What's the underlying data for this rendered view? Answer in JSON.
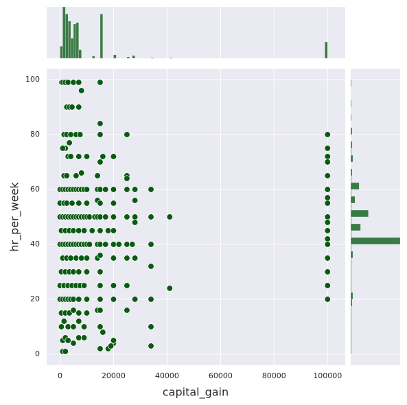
{
  "chart_data": {
    "type": "scatter",
    "xlabel": "capital_gain",
    "ylabel": "hr_per_week",
    "color": "#0b5a12",
    "grid": true,
    "xlim": [
      -5000,
      106600
    ],
    "ylim": [
      -4,
      104
    ],
    "xticks": [
      0,
      20000,
      40000,
      60000,
      80000,
      100000
    ],
    "yticks": [
      0,
      20,
      40,
      60,
      80,
      100
    ],
    "x": [
      600,
      1000,
      2000,
      3000,
      5000,
      7000,
      15000,
      2500,
      3500,
      4500,
      7000,
      8000,
      1500,
      2500,
      4000,
      6000,
      7500,
      15000,
      15000,
      25000,
      3500,
      2000,
      1000,
      3000,
      4000,
      7000,
      10000,
      15000,
      20000,
      16000,
      1500,
      2500,
      6000,
      8000,
      14000,
      25000,
      25000,
      0,
      1000,
      2000,
      3000,
      4000,
      5000,
      6000,
      7000,
      8000,
      9000,
      10000,
      14000,
      15000,
      17000,
      20000,
      25000,
      28000,
      34000,
      0,
      1500,
      2500,
      4500,
      7000,
      10000,
      14000,
      15000,
      20000,
      28000,
      0,
      1000,
      2000,
      3000,
      4000,
      5000,
      6000,
      7000,
      8000,
      9000,
      10000,
      11000,
      13000,
      14000,
      15000,
      17000,
      20000,
      25000,
      28000,
      34000,
      41000,
      500,
      2000,
      3500,
      5000,
      7000,
      9000,
      12000,
      15000,
      18000,
      20000,
      28000,
      0,
      1000,
      2000,
      3000,
      4000,
      5000,
      6000,
      7000,
      8000,
      9000,
      10000,
      11000,
      14000,
      15000,
      17000,
      20000,
      22000,
      25000,
      27000,
      34000,
      1000,
      2500,
      4000,
      6000,
      8000,
      10000,
      14000,
      15000,
      20000,
      25000,
      28000,
      500,
      2000,
      3500,
      5000,
      7000,
      10000,
      15000,
      34000,
      0,
      1500,
      3000,
      4500,
      6000,
      7500,
      9000,
      15000,
      20000,
      25000,
      0,
      1000,
      2000,
      3000,
      4000,
      5000,
      7000,
      10000,
      15000,
      20000,
      28000,
      34000,
      41000,
      500,
      2000,
      3500,
      5000,
      7000,
      10000,
      14000,
      15000,
      25000,
      500,
      1500,
      3000,
      5000,
      7000,
      9000,
      15000,
      34000,
      1000,
      2000,
      3000,
      5000,
      7000,
      9000,
      16000,
      20000,
      20000,
      1000,
      2000,
      15000,
      18000,
      19000,
      34000,
      100000,
      100000,
      100000,
      100000,
      100000,
      100000,
      100000,
      100000,
      100000,
      100000,
      100000,
      100000,
      100000,
      100000,
      100000,
      100000,
      100000
    ],
    "values": [
      99,
      99,
      99,
      99,
      99,
      99,
      99,
      90,
      90,
      90,
      90,
      96,
      80,
      80,
      80,
      80,
      80,
      84,
      80,
      80,
      77,
      75,
      75,
      72,
      72,
      72,
      72,
      70,
      72,
      72,
      65,
      65,
      65,
      66,
      65,
      65,
      64,
      60,
      60,
      60,
      60,
      60,
      60,
      60,
      60,
      60,
      60,
      60,
      60,
      60,
      60,
      60,
      60,
      60,
      60,
      55,
      55,
      55,
      55,
      55,
      55,
      56,
      55,
      55,
      56,
      50,
      50,
      50,
      50,
      50,
      50,
      50,
      50,
      50,
      50,
      50,
      50,
      50,
      50,
      50,
      50,
      50,
      50,
      50,
      50,
      50,
      45,
      45,
      45,
      45,
      45,
      45,
      45,
      45,
      45,
      45,
      48,
      40,
      40,
      40,
      40,
      40,
      40,
      40,
      40,
      40,
      40,
      40,
      40,
      40,
      40,
      40,
      40,
      40,
      40,
      40,
      40,
      35,
      35,
      35,
      35,
      35,
      35,
      35,
      36,
      35,
      35,
      35,
      30,
      30,
      30,
      30,
      30,
      30,
      30,
      32,
      25,
      25,
      25,
      25,
      25,
      25,
      25,
      25,
      25,
      25,
      20,
      20,
      20,
      20,
      20,
      20,
      20,
      20,
      20,
      20,
      20,
      20,
      24,
      15,
      15,
      15,
      16,
      15,
      15,
      16,
      16,
      16,
      10,
      12,
      10,
      10,
      12,
      10,
      10,
      10,
      5,
      6,
      5,
      4,
      6,
      6,
      8,
      4,
      5,
      1,
      1,
      2,
      2,
      3,
      3,
      80,
      75,
      72,
      70,
      65,
      60,
      57,
      55,
      50,
      48,
      45,
      42,
      40,
      35,
      30,
      25,
      20
    ],
    "marginal_x": {
      "color": "#3a7a46",
      "bins": [
        0,
        1000,
        2000,
        3000,
        4000,
        5000,
        6000,
        7000,
        8000,
        9000,
        10000,
        11000,
        12000,
        13000,
        14000,
        15000,
        16000,
        17000,
        18000,
        19000,
        20000,
        21000,
        22000,
        23000,
        24000,
        25000,
        26000,
        27000,
        28000,
        29000,
        30000,
        31000,
        32000,
        33000,
        34000,
        35000,
        36000,
        37000,
        38000,
        39000,
        40000,
        41000,
        42000,
        43000,
        44000,
        45000,
        46000,
        47000,
        48000,
        49000,
        50000,
        51000,
        52000,
        53000,
        54000,
        55000,
        56000,
        57000,
        58000,
        59000,
        60000,
        61000,
        62000,
        63000,
        64000,
        65000,
        66000,
        67000,
        68000,
        69000,
        70000,
        71000,
        72000,
        73000,
        74000,
        75000,
        76000,
        77000,
        78000,
        79000,
        80000,
        81000,
        82000,
        83000,
        84000,
        85000,
        86000,
        87000,
        88000,
        89000,
        90000,
        91000,
        92000,
        93000,
        94000,
        95000,
        96000,
        97000,
        98000,
        99000,
        100000
      ],
      "counts": [
        17,
        72,
        62,
        52,
        28,
        48,
        50,
        12,
        0,
        0,
        0,
        0,
        3,
        0,
        0,
        62,
        0,
        0,
        0,
        0,
        5,
        0,
        0,
        0,
        0,
        2,
        0,
        4,
        0,
        0,
        0,
        0,
        0,
        0,
        1,
        0,
        0,
        0,
        0,
        0,
        0,
        1,
        0,
        0,
        0,
        0,
        0,
        0,
        0,
        0,
        0,
        0,
        0,
        0,
        0,
        0,
        0,
        0,
        0,
        0,
        0,
        0,
        0,
        0,
        0,
        0,
        0,
        0,
        0,
        0,
        0,
        0,
        0,
        0,
        0,
        0,
        0,
        0,
        0,
        0,
        0,
        0,
        0,
        0,
        0,
        0,
        0,
        0,
        0,
        0,
        0,
        0,
        0,
        0,
        0,
        0,
        0,
        0,
        0,
        23
      ]
    },
    "marginal_y": {
      "color": "#3a7a46",
      "bins": [
        0,
        2.5,
        5,
        7.5,
        10,
        12.5,
        15,
        17.5,
        20,
        22.5,
        25,
        27.5,
        30,
        32.5,
        35,
        37.5,
        40,
        42.5,
        45,
        47.5,
        50,
        52.5,
        55,
        57.5,
        60,
        62.5,
        65,
        67.5,
        70,
        72.5,
        75,
        77.5,
        80,
        82.5,
        85,
        87.5,
        90,
        92.5,
        95,
        97.5,
        100
      ],
      "counts": [
        1,
        1,
        1,
        1,
        1,
        1,
        1,
        2,
        3,
        1,
        1,
        1,
        1,
        1,
        3,
        1,
        70,
        1,
        14,
        1,
        25,
        1,
        6,
        1,
        12,
        1,
        2,
        0,
        3,
        1,
        2,
        0,
        2,
        0,
        1,
        0,
        1,
        0,
        0,
        1
      ]
    }
  }
}
